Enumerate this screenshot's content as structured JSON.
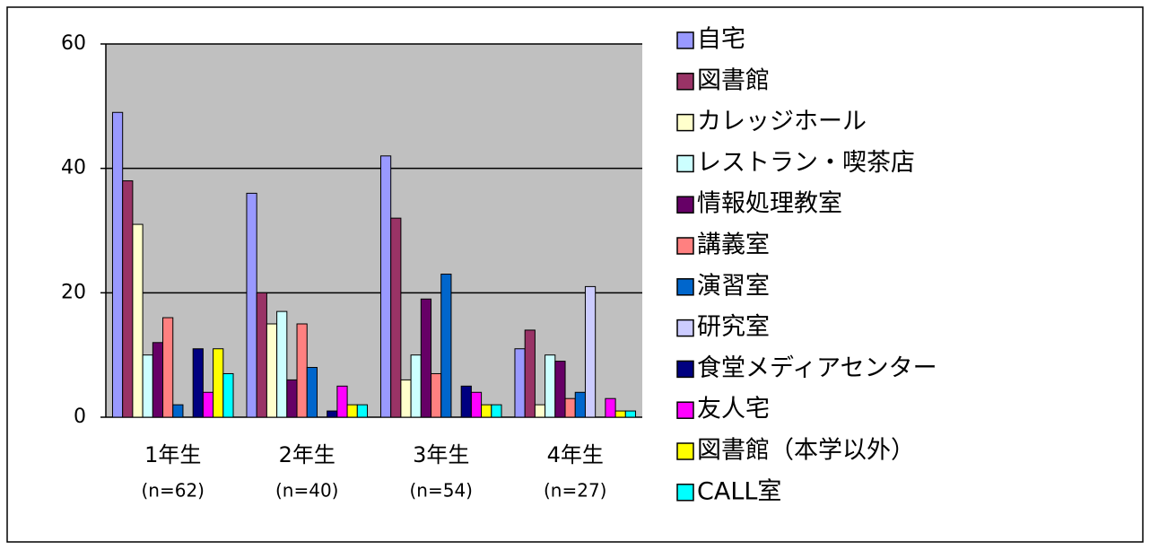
{
  "chart_data": {
    "type": "bar",
    "categories": [
      "1年生",
      "2年生",
      "3年生",
      "4年生"
    ],
    "category_sublabels": [
      "(n=62)",
      "(n=40)",
      "(n=54)",
      "(n=27)"
    ],
    "series": [
      {
        "name": "自宅",
        "color": "#9999ff",
        "values": [
          49,
          36,
          42,
          11
        ]
      },
      {
        "name": "図書館",
        "color": "#993366",
        "values": [
          38,
          20,
          32,
          14
        ]
      },
      {
        "name": "カレッジホール",
        "color": "#ffffcc",
        "values": [
          31,
          15,
          6,
          2
        ]
      },
      {
        "name": "レストラン・喫茶店",
        "color": "#ccffff",
        "values": [
          10,
          17,
          10,
          10
        ]
      },
      {
        "name": "情報処理教室",
        "color": "#660066",
        "values": [
          12,
          6,
          19,
          9
        ]
      },
      {
        "name": "講義室",
        "color": "#ff8080",
        "values": [
          16,
          15,
          7,
          3
        ]
      },
      {
        "name": "演習室",
        "color": "#0066cc",
        "values": [
          2,
          8,
          23,
          4
        ]
      },
      {
        "name": "研究室",
        "color": "#ccccff",
        "values": [
          0,
          0,
          0,
          21
        ]
      },
      {
        "name": "食堂メディアセンター",
        "color": "#000080",
        "values": [
          11,
          1,
          5,
          0
        ]
      },
      {
        "name": "友人宅",
        "color": "#ff00ff",
        "values": [
          4,
          5,
          4,
          3
        ]
      },
      {
        "name": "図書館（本学以外）",
        "color": "#ffff00",
        "values": [
          11,
          2,
          2,
          1
        ]
      },
      {
        "name": "CALL室",
        "color": "#00ffff",
        "values": [
          7,
          2,
          2,
          1
        ]
      }
    ],
    "ylim": [
      0,
      60
    ],
    "yticks": [
      0,
      20,
      40,
      60
    ],
    "grid": true,
    "legend": "right"
  }
}
